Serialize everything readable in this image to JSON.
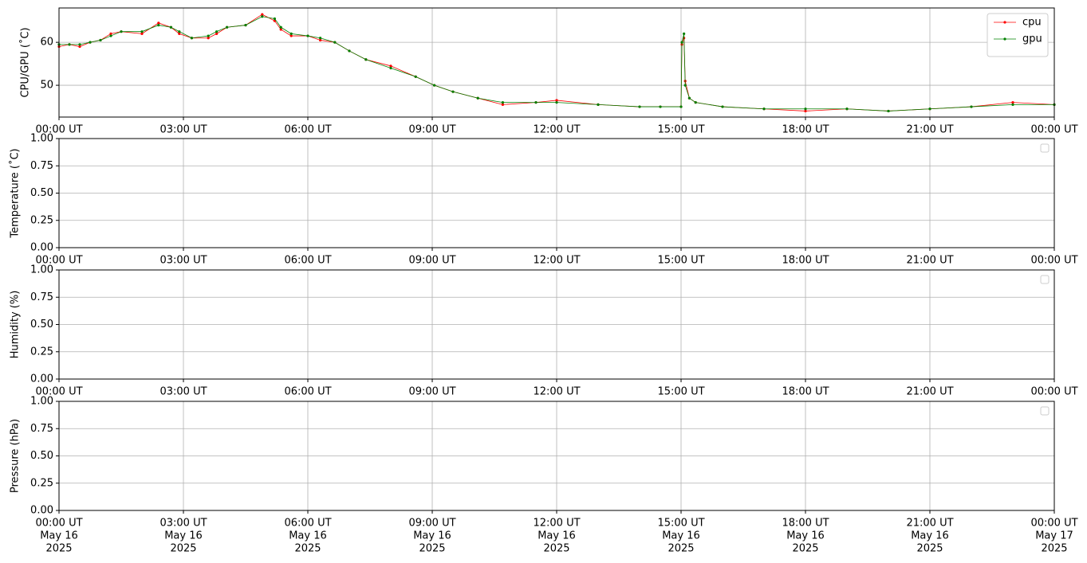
{
  "chart_data": [
    {
      "type": "line",
      "ylabel": "CPU/GPU (˚C)",
      "legend": "upper right",
      "grid": true,
      "xlim": [
        0,
        24
      ],
      "ylim": [
        42.6,
        68
      ],
      "yticks": [
        50,
        60
      ],
      "xticks": [
        {
          "value": 0,
          "label": "00:00 UT"
        },
        {
          "value": 3,
          "label": "03:00 UT"
        },
        {
          "value": 6,
          "label": "06:00 UT"
        },
        {
          "value": 9,
          "label": "09:00 UT"
        },
        {
          "value": 12,
          "label": "12:00 UT"
        },
        {
          "value": 15,
          "label": "15:00 UT"
        },
        {
          "value": 18,
          "label": "18:00 UT"
        },
        {
          "value": 21,
          "label": "21:00 UT"
        },
        {
          "value": 24,
          "label": "00:00 UT"
        }
      ],
      "x": [
        0,
        0.25,
        0.5,
        0.75,
        1,
        1.25,
        1.5,
        2,
        2.4,
        2.7,
        2.9,
        3.2,
        3.6,
        3.8,
        4.05,
        4.5,
        4.9,
        5.2,
        5.35,
        5.6,
        6,
        6.3,
        6.65,
        7,
        7.4,
        8,
        8.6,
        9.05,
        9.5,
        10.1,
        10.7,
        11.5,
        12,
        13,
        14,
        14.5,
        15,
        15.02,
        15.07,
        15.1,
        15.2,
        15.35,
        16,
        17,
        18,
        19,
        20,
        21,
        22,
        23,
        24
      ],
      "series": [
        {
          "name": "cpu",
          "color": "#ff0000",
          "values": [
            59,
            59.5,
            59,
            60,
            60.5,
            62,
            62.5,
            62,
            64.5,
            63.5,
            62,
            61,
            61,
            62,
            63.5,
            64,
            66.5,
            65,
            63,
            61.5,
            61.5,
            60.5,
            60,
            58,
            56,
            54.5,
            52,
            50,
            48.5,
            47,
            45.5,
            46,
            46.5,
            45.5,
            45,
            45,
            45,
            59.5,
            61,
            51,
            47,
            46,
            45,
            44.5,
            44,
            44.5,
            44,
            44.5,
            45,
            46,
            45.5
          ]
        },
        {
          "name": "gpu",
          "color": "#008000",
          "values": [
            59.5,
            59.5,
            59.5,
            60,
            60.5,
            61.5,
            62.5,
            62.5,
            64,
            63.5,
            62.5,
            61,
            61.5,
            62.5,
            63.5,
            64,
            66,
            65.5,
            63.5,
            62,
            61.5,
            61,
            60,
            58,
            56,
            54,
            52,
            50,
            48.5,
            47,
            46,
            46,
            46,
            45.5,
            45,
            45,
            45,
            60,
            62,
            50,
            47,
            46,
            45,
            44.5,
            44.5,
            44.5,
            44,
            44.5,
            45,
            45.5,
            45.5
          ]
        }
      ]
    },
    {
      "type": "line",
      "ylabel": "Temperature (˚C)",
      "legend": "upper right",
      "grid": true,
      "xlim": [
        0,
        24
      ],
      "ylim": [
        0,
        1
      ],
      "yticks": [
        {
          "value": 0,
          "label": "0.00"
        },
        {
          "value": 0.25,
          "label": "0.25"
        },
        {
          "value": 0.5,
          "label": "0.50"
        },
        {
          "value": 0.75,
          "label": "0.75"
        },
        {
          "value": 1,
          "label": "1.00"
        }
      ],
      "xticks": [
        {
          "value": 0,
          "label": "00:00 UT"
        },
        {
          "value": 3,
          "label": "03:00 UT"
        },
        {
          "value": 6,
          "label": "06:00 UT"
        },
        {
          "value": 9,
          "label": "09:00 UT"
        },
        {
          "value": 12,
          "label": "12:00 UT"
        },
        {
          "value": 15,
          "label": "15:00 UT"
        },
        {
          "value": 18,
          "label": "18:00 UT"
        },
        {
          "value": 21,
          "label": "21:00 UT"
        },
        {
          "value": 24,
          "label": "00:00 UT"
        }
      ],
      "series": []
    },
    {
      "type": "line",
      "ylabel": "Humidity (%)",
      "legend": "upper right",
      "grid": true,
      "xlim": [
        0,
        24
      ],
      "ylim": [
        0,
        1
      ],
      "yticks": [
        {
          "value": 0,
          "label": "0.00"
        },
        {
          "value": 0.25,
          "label": "0.25"
        },
        {
          "value": 0.5,
          "label": "0.50"
        },
        {
          "value": 0.75,
          "label": "0.75"
        },
        {
          "value": 1,
          "label": "1.00"
        }
      ],
      "xticks": [
        {
          "value": 0,
          "label": "00:00 UT"
        },
        {
          "value": 3,
          "label": "03:00 UT"
        },
        {
          "value": 6,
          "label": "06:00 UT"
        },
        {
          "value": 9,
          "label": "09:00 UT"
        },
        {
          "value": 12,
          "label": "12:00 UT"
        },
        {
          "value": 15,
          "label": "15:00 UT"
        },
        {
          "value": 18,
          "label": "18:00 UT"
        },
        {
          "value": 21,
          "label": "21:00 UT"
        },
        {
          "value": 24,
          "label": "00:00 UT"
        }
      ],
      "series": []
    },
    {
      "type": "line",
      "ylabel": "Pressure (hPa)",
      "legend": "upper right",
      "grid": true,
      "xlim": [
        0,
        24
      ],
      "ylim": [
        0,
        1
      ],
      "yticks": [
        {
          "value": 0,
          "label": "0.00"
        },
        {
          "value": 0.25,
          "label": "0.25"
        },
        {
          "value": 0.5,
          "label": "0.50"
        },
        {
          "value": 0.75,
          "label": "0.75"
        },
        {
          "value": 1,
          "label": "1.00"
        }
      ],
      "xticks": [
        {
          "value": 0,
          "label": [
            "00:00 UT",
            "May 16",
            "2025"
          ]
        },
        {
          "value": 3,
          "label": [
            "03:00 UT",
            "May 16",
            "2025"
          ]
        },
        {
          "value": 6,
          "label": [
            "06:00 UT",
            "May 16",
            "2025"
          ]
        },
        {
          "value": 9,
          "label": [
            "09:00 UT",
            "May 16",
            "2025"
          ]
        },
        {
          "value": 12,
          "label": [
            "12:00 UT",
            "May 16",
            "2025"
          ]
        },
        {
          "value": 15,
          "label": [
            "15:00 UT",
            "May 16",
            "2025"
          ]
        },
        {
          "value": 18,
          "label": [
            "18:00 UT",
            "May 16",
            "2025"
          ]
        },
        {
          "value": 21,
          "label": [
            "21:00 UT",
            "May 16",
            "2025"
          ]
        },
        {
          "value": 24,
          "label": [
            "00:00 UT",
            "May 17",
            "2025"
          ]
        }
      ],
      "series": []
    }
  ]
}
